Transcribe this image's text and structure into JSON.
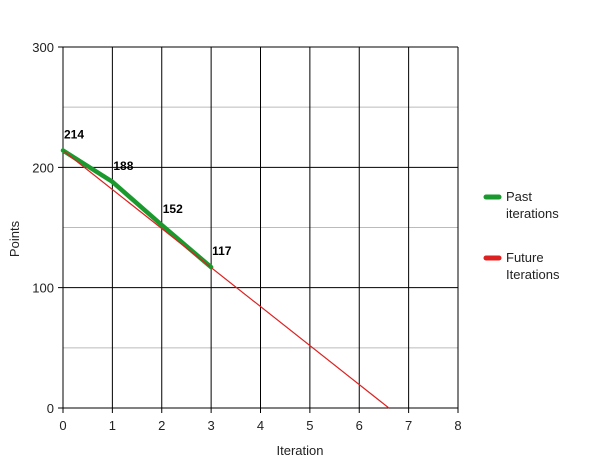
{
  "chart_data": {
    "type": "line",
    "title": "",
    "xlabel": "Iteration",
    "ylabel": "Points",
    "xlim": [
      0,
      8
    ],
    "ylim": [
      0,
      300
    ],
    "x_ticks": [
      "0",
      "1",
      "2",
      "3",
      "4",
      "5",
      "6",
      "7",
      "8"
    ],
    "y_ticks": [
      "0",
      "100",
      "200",
      "300"
    ],
    "y_minor_gridlines": [
      50,
      150,
      250
    ],
    "grid": true,
    "legend_position": "right",
    "series": [
      {
        "name": "Past iterations",
        "color": "#1a9a2e",
        "x": [
          0,
          1,
          2,
          3
        ],
        "y": [
          214,
          188,
          152,
          117
        ],
        "labels": [
          "214",
          "188",
          "152",
          "117"
        ]
      },
      {
        "name": "Future Iterations",
        "color": "#dd2020",
        "x": [
          0,
          6.6
        ],
        "y": [
          214,
          0
        ]
      }
    ],
    "legend": [
      {
        "line1": "Past",
        "line2": "iterations",
        "color": "#1a9a2e"
      },
      {
        "line1": "Future",
        "line2": "Iterations",
        "color": "#dd2020"
      }
    ]
  }
}
